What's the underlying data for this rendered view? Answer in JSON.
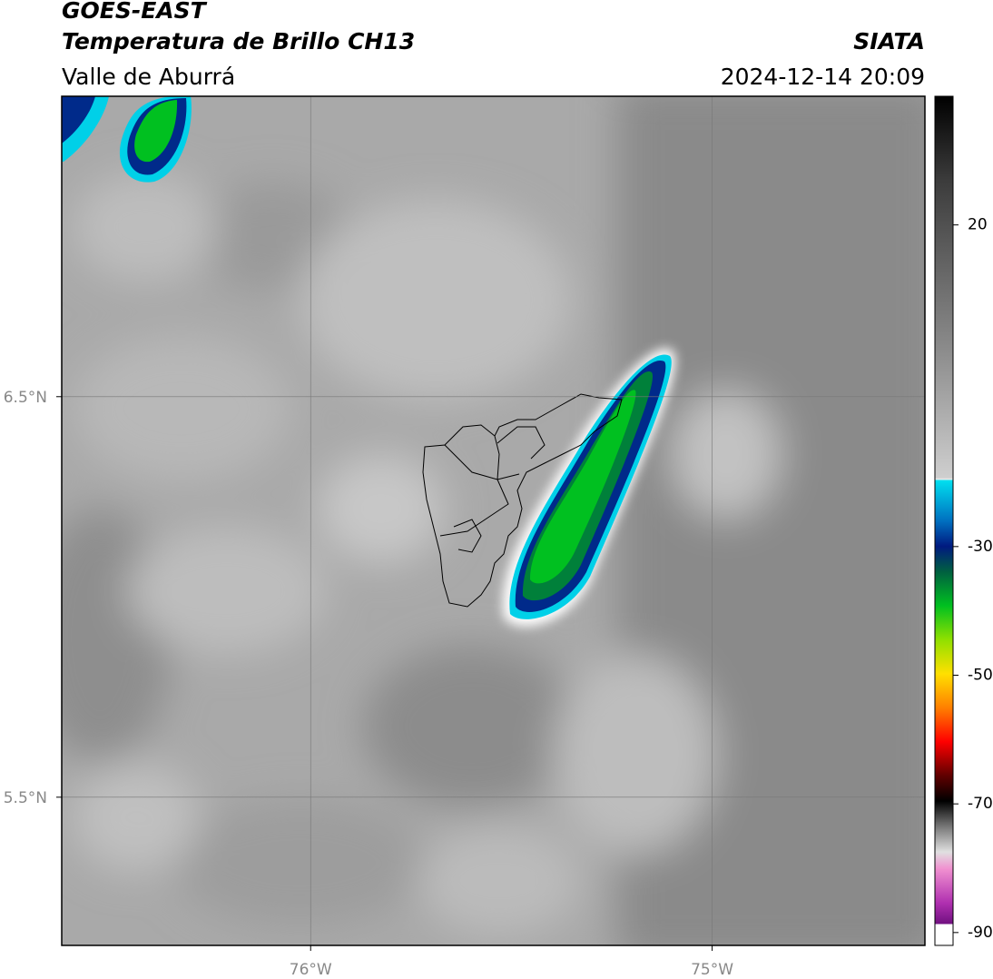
{
  "header": {
    "title": "GOES-EAST",
    "subtitle": "Temperatura de Brillo CH13",
    "region": "Valle de Aburrá",
    "source": "SIATA",
    "datetime": "2024-12-14 20:09"
  },
  "map": {
    "xlim": [
      -76.62,
      -74.47
    ],
    "ylim": [
      5.13,
      7.25
    ],
    "xticks": [
      {
        "value": -76,
        "label": "76°W"
      },
      {
        "value": -75,
        "label": "75°W"
      }
    ],
    "yticks": [
      {
        "value": 6.5,
        "label": "6.5°N"
      },
      {
        "value": 5.5,
        "label": "5.5°N"
      }
    ],
    "grid": true
  },
  "colorbar": {
    "lim": [
      -92,
      40
    ],
    "ticks": [
      20,
      -30,
      -50,
      -70,
      -90
    ]
  }
}
